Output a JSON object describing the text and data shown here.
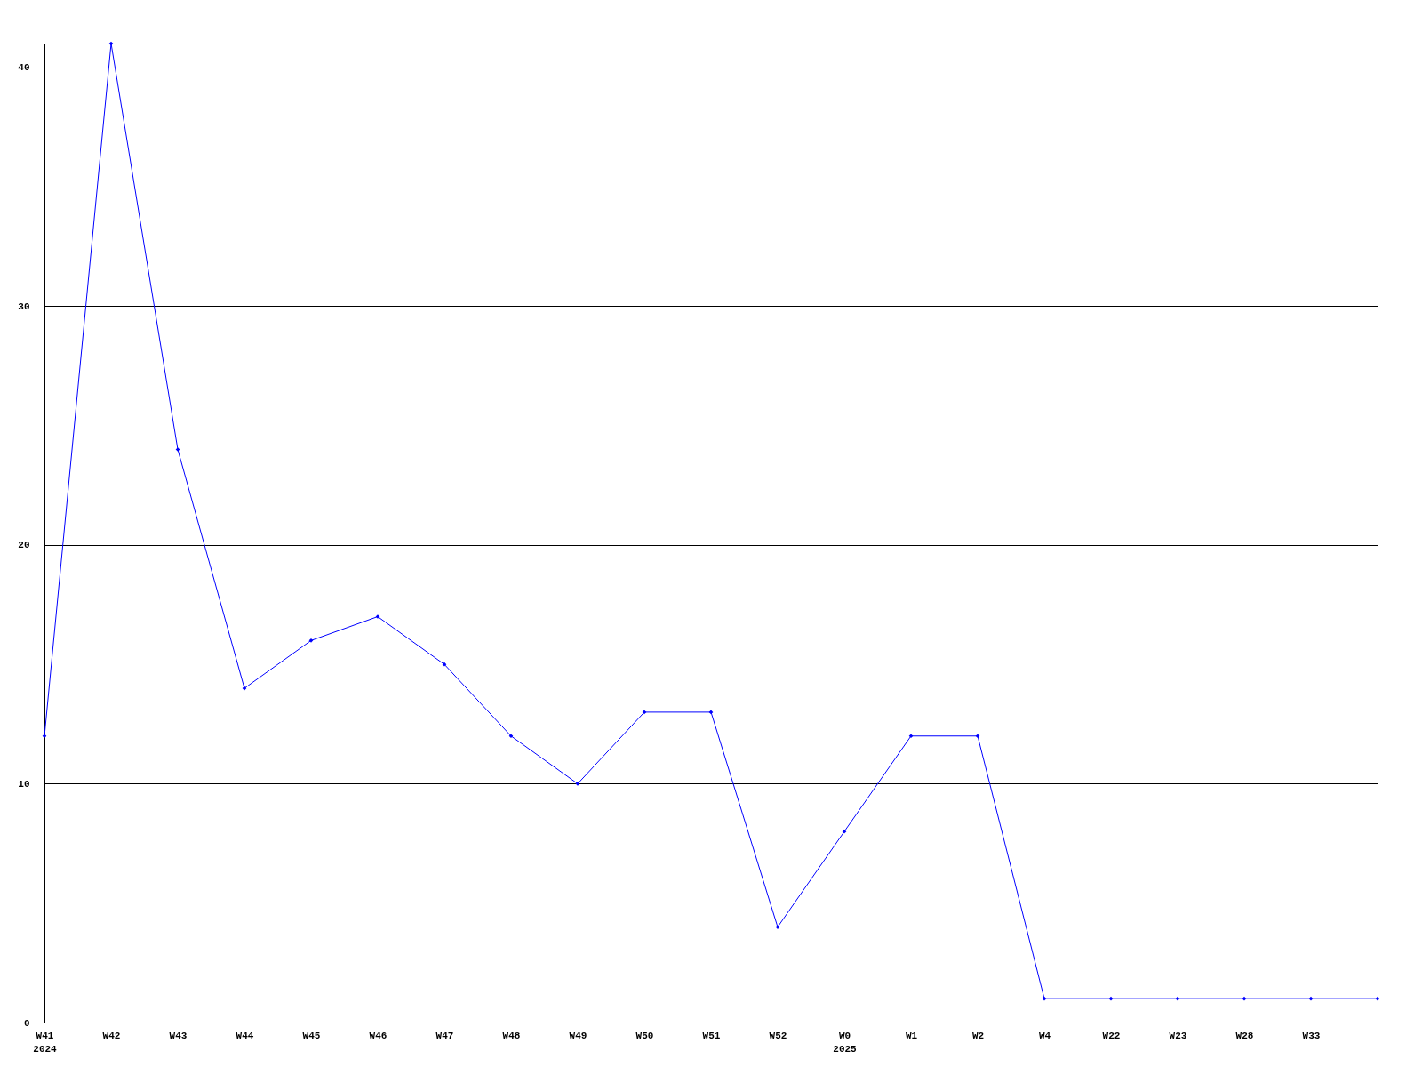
{
  "chart_data": {
    "type": "line",
    "categories": [
      "W41\n2024",
      "W42",
      "W43",
      "W44",
      "W45",
      "W46",
      "W47",
      "W48",
      "W49",
      "W50",
      "W51",
      "W52",
      "W0\n2025",
      "W1",
      "W2",
      "W4",
      "W22",
      "W23",
      "W28",
      "W33",
      null
    ],
    "series": [
      {
        "color": "#0000ff",
        "values": [
          12,
          41,
          24,
          14,
          16,
          17,
          15,
          12,
          10,
          13,
          13,
          4,
          8,
          12,
          12,
          1,
          1,
          1,
          1,
          1,
          1
        ]
      }
    ],
    "ylim": [
      0,
      41
    ],
    "yticks": [
      0,
      10,
      20,
      30,
      40
    ],
    "grid": "y",
    "marker": "diamond",
    "line_style": "solid"
  }
}
